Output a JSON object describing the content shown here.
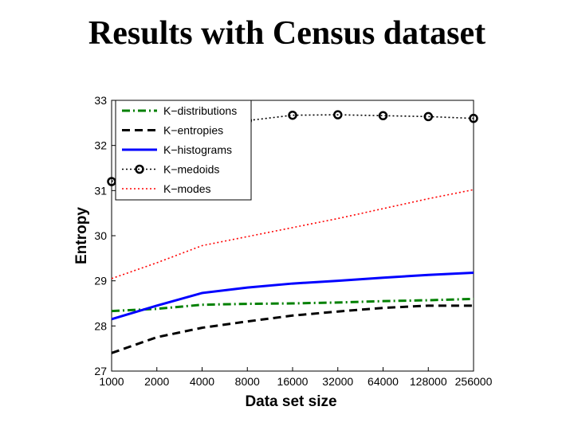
{
  "slide": {
    "title": "Results with Census dataset"
  },
  "chart_data": {
    "type": "line",
    "xlabel": "Data set size",
    "ylabel": "Entropy",
    "categories": [
      "1000",
      "2000",
      "4000",
      "8000",
      "16000",
      "32000",
      "64000",
      "128000",
      "256000"
    ],
    "ylim": [
      27,
      33
    ],
    "yticks": [
      27,
      28,
      29,
      30,
      31,
      32,
      33
    ],
    "grid": false,
    "legend_position": "top-left",
    "series": [
      {
        "name": "K−distributions",
        "color": "#008000",
        "style": "dashdot",
        "marker": "none",
        "values": [
          28.33,
          28.38,
          28.47,
          28.49,
          28.5,
          28.52,
          28.55,
          28.57,
          28.6
        ]
      },
      {
        "name": "K−entropies",
        "color": "#000000",
        "style": "dashed",
        "marker": "none",
        "values": [
          27.4,
          27.75,
          27.96,
          28.1,
          28.23,
          28.32,
          28.4,
          28.45,
          28.45
        ]
      },
      {
        "name": "K−histograms",
        "color": "#0000ff",
        "style": "solid",
        "marker": "none",
        "values": [
          28.15,
          28.45,
          28.73,
          28.85,
          28.94,
          29.0,
          29.07,
          29.13,
          29.18
        ]
      },
      {
        "name": "K−medoids",
        "color": "#000000",
        "style": "dotted",
        "marker": "circle",
        "values": [
          31.2,
          31.8,
          32.2,
          32.55,
          32.67,
          32.68,
          32.66,
          32.64,
          32.6
        ]
      },
      {
        "name": "K−modes",
        "color": "#ff0000",
        "style": "dotted",
        "marker": "none",
        "values": [
          29.05,
          29.4,
          29.78,
          29.98,
          30.18,
          30.38,
          30.6,
          30.82,
          31.02
        ]
      }
    ]
  }
}
